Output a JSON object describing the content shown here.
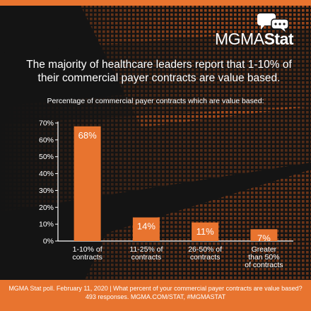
{
  "headline": "The majority of healthcare leaders report that 1-10% of their commercial payer contracts are value based.",
  "logo": {
    "prefix": "MGMA",
    "suffix": "Stat"
  },
  "footer": {
    "line1": "MGMA Stat poll. February 11, 2020  |  What percent of your commercial payer contracts are value based?",
    "line2": "493 responses. MGMA.COM/STAT, #MGMASTAT"
  },
  "colors": {
    "accent": "#e8742f",
    "background": "#141414",
    "text": "#ffffff"
  },
  "chart_data": {
    "type": "bar",
    "title": "Percentage of commercial payer contracts which are value based:",
    "categories": [
      [
        "1-10% of",
        "contracts"
      ],
      [
        "11-25% of",
        "contracts"
      ],
      [
        "26-50% of",
        "contracts"
      ],
      [
        "Greater",
        "than 50%",
        "of contracts"
      ]
    ],
    "values": [
      68,
      14,
      11,
      7
    ],
    "data_labels": [
      "68%",
      "14%",
      "11%",
      "7%"
    ],
    "ylim": [
      0,
      70
    ],
    "yticks": [
      0,
      10,
      20,
      30,
      40,
      50,
      60,
      70
    ],
    "ytick_labels": [
      "0%",
      "10%",
      "20%",
      "30%",
      "40%",
      "50%",
      "60%",
      "70%"
    ],
    "bar_color": "#e8742f",
    "grid": false
  }
}
